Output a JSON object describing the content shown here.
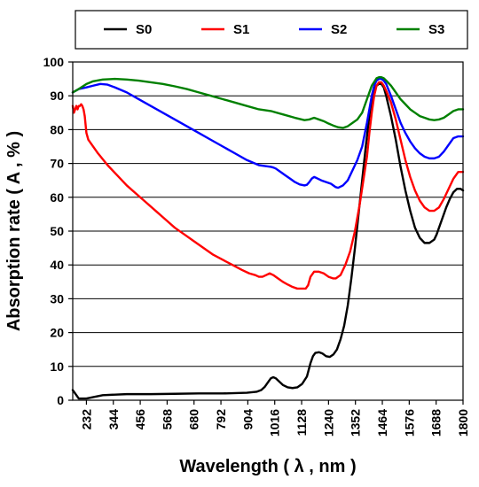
{
  "chart_data": {
    "type": "line",
    "title": "",
    "xlabel": "Wavelength ( λ , nm )",
    "ylabel": "Absorption rate ( A , % )",
    "xlim": [
      175,
      1800
    ],
    "ylim": [
      0,
      100
    ],
    "xticks": [
      232,
      344,
      456,
      568,
      680,
      792,
      904,
      1016,
      1128,
      1240,
      1352,
      1464,
      1576,
      1688,
      1800
    ],
    "yticks": [
      0,
      10,
      20,
      30,
      40,
      50,
      60,
      70,
      80,
      90,
      100
    ],
    "grid": "horizontal",
    "legend_position": "top, outside plot, horizontal",
    "series": [
      {
        "name": "S0",
        "color": "#000000",
        "x": [
          175,
          185,
          200,
          232,
          300,
          400,
          500,
          600,
          700,
          800,
          900,
          940,
          960,
          975,
          990,
          1000,
          1010,
          1020,
          1035,
          1050,
          1070,
          1090,
          1110,
          1130,
          1150,
          1165,
          1175,
          1185,
          1200,
          1215,
          1230,
          1245,
          1260,
          1275,
          1290,
          1305,
          1320,
          1335,
          1350,
          1365,
          1380,
          1395,
          1410,
          1420,
          1430,
          1440,
          1450,
          1460,
          1470,
          1480,
          1500,
          1520,
          1540,
          1560,
          1580,
          1600,
          1620,
          1640,
          1660,
          1680,
          1690,
          1700,
          1715,
          1730,
          1745,
          1760,
          1775,
          1790,
          1800
        ],
        "y": [
          3,
          2,
          0.5,
          0.5,
          1.5,
          1.8,
          1.8,
          1.9,
          2,
          2,
          2.2,
          2.5,
          3,
          4,
          5.5,
          6.5,
          6.8,
          6.5,
          5.5,
          4.5,
          3.8,
          3.6,
          3.8,
          4.8,
          7,
          11,
          13,
          14,
          14.2,
          13.8,
          13,
          12.8,
          13.5,
          15,
          18,
          22,
          28,
          36,
          45,
          55,
          65,
          75,
          84,
          89,
          92,
          93,
          93.5,
          93.5,
          92.5,
          90,
          84,
          77,
          69,
          62,
          56,
          51,
          48,
          46.5,
          46.5,
          47.5,
          49,
          51,
          54,
          57,
          59.5,
          61.5,
          62.5,
          62.5,
          62
        ]
      },
      {
        "name": "S1",
        "color": "#ff0000",
        "x": [
          175,
          180,
          185,
          190,
          195,
          200,
          205,
          210,
          215,
          220,
          225,
          232,
          240,
          250,
          280,
          320,
          360,
          400,
          440,
          480,
          520,
          560,
          600,
          640,
          680,
          720,
          760,
          800,
          840,
          880,
          910,
          935,
          950,
          965,
          980,
          995,
          1010,
          1030,
          1050,
          1070,
          1090,
          1110,
          1130,
          1145,
          1155,
          1165,
          1180,
          1200,
          1220,
          1240,
          1260,
          1270,
          1290,
          1310,
          1330,
          1350,
          1370,
          1385,
          1400,
          1410,
          1420,
          1430,
          1440,
          1450,
          1460,
          1470,
          1480,
          1500,
          1520,
          1540,
          1560,
          1580,
          1600,
          1620,
          1640,
          1660,
          1680,
          1700,
          1720,
          1740,
          1760,
          1780,
          1800
        ],
        "y": [
          87,
          85,
          86,
          87,
          86,
          87,
          87,
          87.5,
          87,
          86,
          84,
          79,
          77,
          76,
          73,
          69.5,
          66.5,
          63.5,
          61,
          58.5,
          56,
          53.5,
          51,
          49,
          47,
          45,
          43,
          41.5,
          40,
          38.5,
          37.5,
          37,
          36.5,
          36.5,
          37,
          37.5,
          37,
          36,
          35,
          34.2,
          33.5,
          33,
          33,
          33,
          34,
          36.5,
          38,
          38,
          37.5,
          36.5,
          36,
          36,
          37,
          40,
          44,
          50,
          58,
          65,
          72,
          79,
          85,
          90,
          93,
          94,
          94,
          93,
          91.5,
          88,
          83,
          77,
          71,
          66,
          62,
          59,
          57,
          56,
          56,
          57,
          59.5,
          62.5,
          65.5,
          67.5,
          67.5
        ]
      },
      {
        "name": "S2",
        "color": "#0000ff",
        "x": [
          175,
          200,
          232,
          260,
          290,
          320,
          350,
          400,
          450,
          500,
          550,
          600,
          650,
          700,
          750,
          800,
          850,
          900,
          950,
          1000,
          1010,
          1020,
          1040,
          1060,
          1080,
          1100,
          1120,
          1140,
          1150,
          1160,
          1170,
          1180,
          1190,
          1210,
          1230,
          1250,
          1270,
          1280,
          1300,
          1320,
          1340,
          1360,
          1380,
          1400,
          1410,
          1420,
          1430,
          1440,
          1450,
          1460,
          1470,
          1480,
          1500,
          1520,
          1540,
          1560,
          1580,
          1600,
          1620,
          1640,
          1660,
          1680,
          1700,
          1720,
          1740,
          1760,
          1780,
          1800
        ],
        "y": [
          91,
          92,
          92.5,
          93,
          93.5,
          93.3,
          92.5,
          91,
          89,
          87,
          85,
          83,
          81,
          79,
          77,
          75,
          73,
          71,
          69.5,
          69,
          68.8,
          68.5,
          67.5,
          66.5,
          65.5,
          64.5,
          63.8,
          63.5,
          63.7,
          64.5,
          65.5,
          66,
          65.7,
          65,
          64.5,
          64,
          63,
          62.8,
          63.5,
          65,
          68,
          71,
          75,
          82,
          86,
          90,
          93,
          94.5,
          95,
          95,
          94.5,
          93.5,
          90,
          86,
          82,
          79,
          76.5,
          74.5,
          73,
          72,
          71.5,
          71.5,
          72,
          73.5,
          75.5,
          77.5,
          78,
          78
        ]
      },
      {
        "name": "S3",
        "color": "#008000",
        "x": [
          175,
          200,
          232,
          260,
          300,
          350,
          400,
          450,
          500,
          550,
          600,
          650,
          700,
          750,
          800,
          850,
          900,
          950,
          1000,
          1050,
          1100,
          1140,
          1160,
          1180,
          1200,
          1220,
          1240,
          1260,
          1280,
          1300,
          1320,
          1340,
          1360,
          1380,
          1400,
          1420,
          1440,
          1450,
          1460,
          1470,
          1480,
          1500,
          1520,
          1540,
          1560,
          1580,
          1600,
          1620,
          1640,
          1660,
          1680,
          1700,
          1720,
          1740,
          1760,
          1780,
          1800
        ],
        "y": [
          91,
          92,
          93.5,
          94.3,
          94.8,
          95,
          94.8,
          94.5,
          94,
          93.5,
          92.8,
          92,
          91,
          90,
          89,
          88,
          87,
          86,
          85.5,
          84.5,
          83.5,
          82.8,
          83,
          83.5,
          83,
          82.5,
          81.8,
          81.2,
          80.7,
          80.5,
          81,
          82,
          83,
          85,
          89,
          93,
          95.2,
          95.5,
          95.5,
          95.2,
          94.5,
          93,
          91,
          89,
          87.5,
          86,
          85,
          84,
          83.5,
          83,
          82.8,
          83,
          83.5,
          84.5,
          85.5,
          86,
          86
        ]
      }
    ]
  }
}
